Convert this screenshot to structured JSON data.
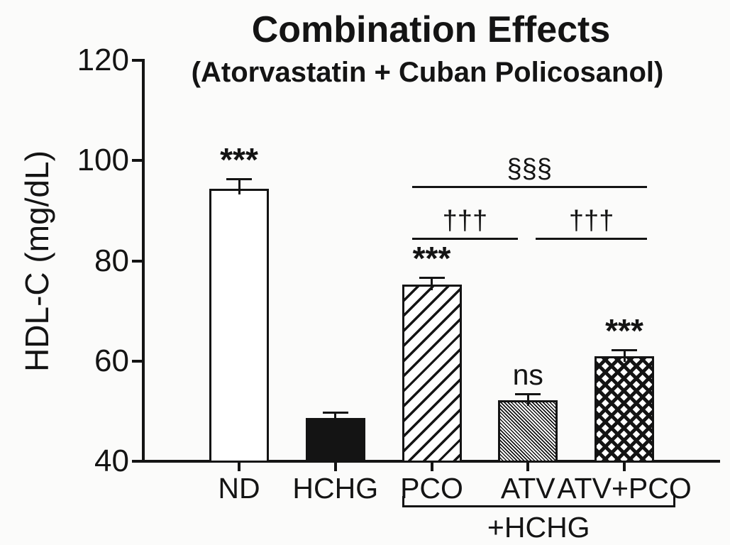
{
  "chart_data": {
    "type": "bar",
    "title": "Combination Effects",
    "subtitle": "(Atorvastatin + Cuban Policosanol)",
    "xlabel": "",
    "ylabel": "HDL-C (mg/dL)",
    "ylim": [
      40,
      120
    ],
    "yticks": [
      40,
      60,
      80,
      100,
      120
    ],
    "grid": false,
    "legend": false,
    "categories": [
      "ND",
      "HCHG",
      "PCO",
      "ATV",
      "ATV+PCO"
    ],
    "values": [
      94.4,
      48.6,
      75.2,
      52.2,
      61.0
    ],
    "errors": [
      1.9,
      1.2,
      1.5,
      1.3,
      1.2
    ],
    "bar_styles": [
      "white",
      "solid-black",
      "diagonal-forward",
      "diagonal-back-fine",
      "crosshatch"
    ],
    "sig_labels": [
      "***",
      "",
      "***",
      "ns",
      "***"
    ],
    "brackets": [
      {
        "label": "§§§",
        "from": 2,
        "to": 4,
        "tier": "upper"
      },
      {
        "label": "†††",
        "from": 2,
        "to": 3,
        "tier": "lower"
      },
      {
        "label": "†††",
        "from": 3,
        "to": 4,
        "tier": "lower"
      }
    ],
    "group_bracket": {
      "label": "+HCHG",
      "from": 2,
      "to": 4
    },
    "colors": {
      "ink": "#141414",
      "background": "#fbfbfa",
      "bar_fill_dark": "#141414",
      "bar_fill_light": "#ffffff"
    }
  }
}
